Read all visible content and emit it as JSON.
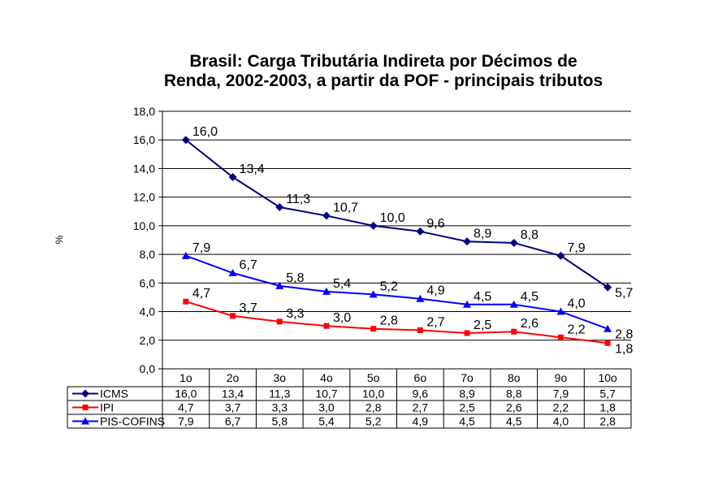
{
  "chart_data": {
    "type": "line",
    "title_line1": "Brasil: Carga Tributária Indireta por Décimos de",
    "title_line2": "Renda, 2002-2003, a partir da POF - principais tributos",
    "ylabel": "%",
    "ylim": [
      0,
      18
    ],
    "ytick_step": 2,
    "ytick_labels": [
      "0,0",
      "2,0",
      "4,0",
      "6,0",
      "8,0",
      "10,0",
      "12,0",
      "14,0",
      "16,0",
      "18,0"
    ],
    "grid": true,
    "legend": "data-table",
    "categories": [
      "1o",
      "2o",
      "3o",
      "4o",
      "5o",
      "6o",
      "7o",
      "8o",
      "9o",
      "10o"
    ],
    "series": [
      {
        "name": "ICMS",
        "color": "#00007f",
        "marker": "diamond",
        "values": [
          16.0,
          13.4,
          11.3,
          10.7,
          10.0,
          9.6,
          8.9,
          8.8,
          7.9,
          5.7
        ],
        "labels": [
          "16,0",
          "13,4",
          "11,3",
          "10,7",
          "10,0",
          "9,6",
          "8,9",
          "8,8",
          "7,9",
          "5,7"
        ]
      },
      {
        "name": "IPI",
        "color": "#ff0000",
        "marker": "square",
        "values": [
          4.7,
          3.7,
          3.3,
          3.0,
          2.8,
          2.7,
          2.5,
          2.6,
          2.2,
          1.8
        ],
        "labels": [
          "4,7",
          "3,7",
          "3,3",
          "3,0",
          "2,8",
          "2,7",
          "2,5",
          "2,6",
          "2,2",
          "1,8"
        ]
      },
      {
        "name": "PIS-COFINS",
        "color": "#0000ff",
        "marker": "triangle",
        "values": [
          7.9,
          6.7,
          5.8,
          5.4,
          5.2,
          4.9,
          4.5,
          4.5,
          4.0,
          2.8
        ],
        "labels": [
          "7,9",
          "6,7",
          "5,8",
          "5,4",
          "5,2",
          "4,9",
          "4,5",
          "4,5",
          "4,0",
          "2,8"
        ]
      }
    ]
  }
}
